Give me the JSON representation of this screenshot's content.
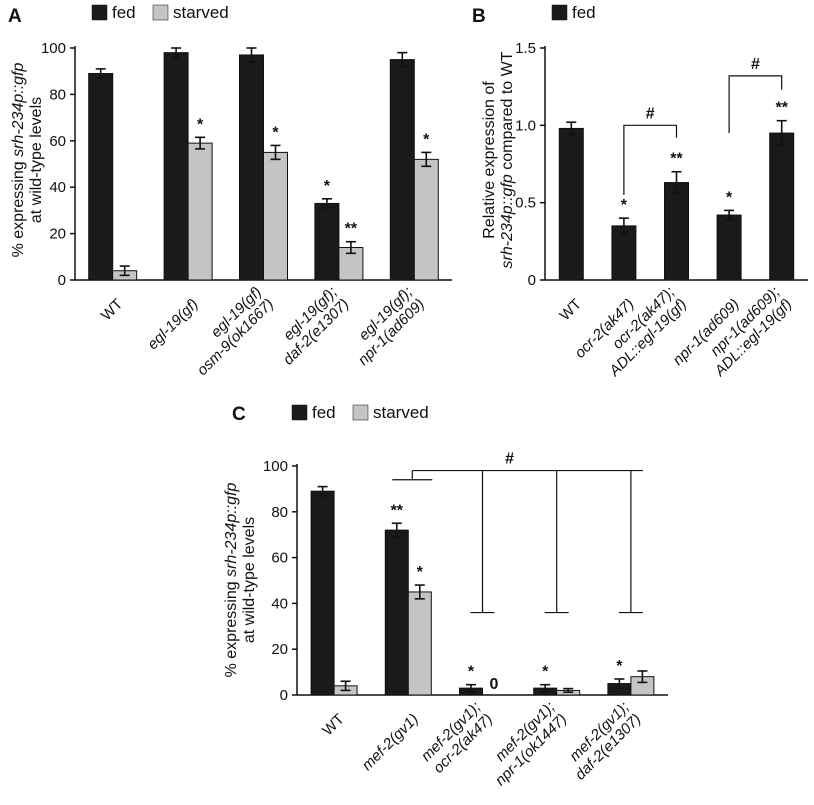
{
  "colors": {
    "fed": "#1a1a1a",
    "starved": "#c4c4c4"
  },
  "chart_data": [
    {
      "panel": "A",
      "type": "bar",
      "ylabel_lines": [
        "% expressing srh-234p::gfp",
        "at wild-type levels"
      ],
      "ylim": [
        0,
        100
      ],
      "yticks": [
        0,
        20,
        40,
        60,
        80,
        100
      ],
      "legend": [
        "fed",
        "starved"
      ],
      "categories": [
        [
          "WT"
        ],
        [
          "egl-19(gf)"
        ],
        [
          "egl-19(gf)",
          "osm-9(ok1667)"
        ],
        [
          "egl-19(gf);",
          "daf-2(e1307)"
        ],
        [
          "egl-19(gf);",
          "npr-1(ad609)"
        ]
      ],
      "series": [
        {
          "name": "fed",
          "values": [
            89,
            98,
            97,
            33,
            95
          ],
          "errors": [
            2,
            2,
            3,
            2,
            3
          ],
          "sig": [
            "",
            "",
            "",
            "*",
            ""
          ]
        },
        {
          "name": "starved",
          "values": [
            4,
            59,
            55,
            14,
            52
          ],
          "errors": [
            2,
            2.5,
            3,
            2.5,
            3
          ],
          "sig": [
            "",
            "*",
            "*",
            "**",
            "*"
          ]
        }
      ]
    },
    {
      "panel": "B",
      "type": "bar",
      "ylabel_lines": [
        "Relative expression of",
        "srh-234p::gfp compared to WT"
      ],
      "ylim": [
        0,
        1.5
      ],
      "yticks": [
        0,
        0.5,
        1.0,
        1.5
      ],
      "ytick_labels": [
        "0",
        "0.5",
        "1.0",
        "1.5"
      ],
      "legend": [
        "fed"
      ],
      "categories": [
        [
          "WT"
        ],
        [
          "ocr-2(ak47)"
        ],
        [
          "ocr-2(ak47);",
          "ADL::egl-19(gf)"
        ],
        [
          "npr-1(ad609)"
        ],
        [
          "npr-1(ad609);",
          "ADL::egl-19(gf)"
        ]
      ],
      "series": [
        {
          "name": "fed",
          "values": [
            0.98,
            0.35,
            0.63,
            0.42,
            0.95
          ],
          "errors": [
            0.04,
            0.05,
            0.07,
            0.03,
            0.08
          ],
          "sig": [
            "",
            "*",
            "**",
            "*",
            "**"
          ]
        }
      ],
      "brackets": [
        {
          "from": 1,
          "to": 2,
          "label": "#"
        },
        {
          "from": 3,
          "to": 4,
          "label": "#"
        }
      ]
    },
    {
      "panel": "C",
      "type": "bar",
      "ylabel_lines": [
        "% expressing srh-234p::gfp",
        "at wild-type levels"
      ],
      "ylim": [
        0,
        100
      ],
      "yticks": [
        0,
        20,
        40,
        60,
        80,
        100
      ],
      "legend": [
        "fed",
        "starved"
      ],
      "categories": [
        [
          "WT"
        ],
        [
          "mef-2(gv1)"
        ],
        [
          "mef-2(gv1);",
          "ocr-2(ak47)"
        ],
        [
          "mef-2(gv1);",
          "npr-1(ok1447)"
        ],
        [
          "mef-2(gv1);",
          "daf-2(e1307)"
        ]
      ],
      "series": [
        {
          "name": "fed",
          "values": [
            89,
            72,
            3,
            3,
            5
          ],
          "errors": [
            2,
            3,
            1.5,
            1.5,
            2
          ],
          "sig": [
            "",
            "**",
            "*",
            "*",
            "*"
          ]
        },
        {
          "name": "starved",
          "values": [
            4,
            45,
            0,
            2,
            8
          ],
          "errors": [
            2,
            3,
            0,
            0.8,
            2.5
          ],
          "sig": [
            "",
            "*",
            "0",
            "",
            ""
          ]
        }
      ],
      "bracket_label": "#"
    }
  ],
  "labels": {
    "panel_a": "A",
    "panel_b": "B",
    "panel_c": "C",
    "legend_fed": "fed",
    "legend_starved": "starved"
  }
}
